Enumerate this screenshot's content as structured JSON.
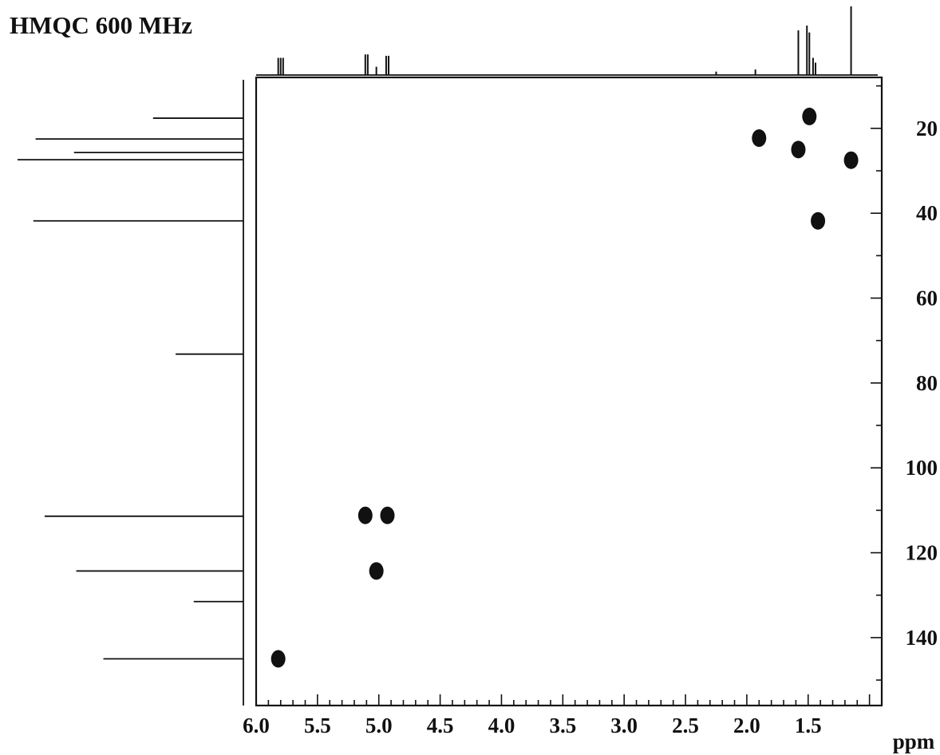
{
  "title": "HMQC 600 MHz",
  "chart_data": {
    "type": "scatter",
    "title": "HMQC 600 MHz",
    "x_axis": {
      "label": "ppm",
      "range": [
        6.0,
        0.9
      ],
      "reversed": true,
      "ticks": [
        6.0,
        5.5,
        5.0,
        4.5,
        4.0,
        3.5,
        3.0,
        2.5,
        2.0,
        1.5
      ],
      "tick_labels": [
        "6.0",
        "5.5",
        "5.0",
        "4.5",
        "4.0",
        "3.5",
        "3.0",
        "2.5",
        "2.0",
        "1.5"
      ],
      "minor_step": 0.1
    },
    "y_axis": {
      "label": "",
      "range": [
        8,
        156
      ],
      "reversed": true,
      "position": "right",
      "ticks": [
        20,
        40,
        60,
        80,
        100,
        120,
        140
      ],
      "tick_labels": [
        "20",
        "40",
        "60",
        "80",
        "100",
        "120",
        "140"
      ],
      "minor_step": 10
    },
    "cross_peaks": [
      {
        "h": 5.82,
        "c": 145.0
      },
      {
        "h": 5.11,
        "c": 111.2
      },
      {
        "h": 4.93,
        "c": 111.2
      },
      {
        "h": 5.02,
        "c": 124.3
      },
      {
        "h": 1.9,
        "c": 22.3
      },
      {
        "h": 1.58,
        "c": 25.0
      },
      {
        "h": 1.49,
        "c": 17.2
      },
      {
        "h": 1.42,
        "c": 41.8
      },
      {
        "h": 1.15,
        "c": 27.5
      }
    ],
    "proton_spectrum_peaks": [
      {
        "h": 5.82,
        "height": 0.25
      },
      {
        "h": 5.8,
        "height": 0.25
      },
      {
        "h": 5.78,
        "height": 0.25
      },
      {
        "h": 5.11,
        "height": 0.3
      },
      {
        "h": 5.09,
        "height": 0.3
      },
      {
        "h": 5.02,
        "height": 0.12
      },
      {
        "h": 4.94,
        "height": 0.28
      },
      {
        "h": 4.92,
        "height": 0.28
      },
      {
        "h": 2.25,
        "height": 0.05
      },
      {
        "h": 1.93,
        "height": 0.08
      },
      {
        "h": 1.58,
        "height": 0.65
      },
      {
        "h": 1.51,
        "height": 0.72
      },
      {
        "h": 1.49,
        "height": 0.62
      },
      {
        "h": 1.46,
        "height": 0.25
      },
      {
        "h": 1.44,
        "height": 0.18
      },
      {
        "h": 1.15,
        "height": 1.0
      }
    ],
    "carbon_spectrum_peaks": [
      {
        "c": 17.6,
        "height": 0.4
      },
      {
        "c": 22.5,
        "height": 0.92
      },
      {
        "c": 25.7,
        "height": 0.75
      },
      {
        "c": 27.4,
        "height": 1.0
      },
      {
        "c": 41.8,
        "height": 0.93
      },
      {
        "c": 73.2,
        "height": 0.3
      },
      {
        "c": 111.4,
        "height": 0.88
      },
      {
        "c": 124.3,
        "height": 0.74
      },
      {
        "c": 131.5,
        "height": 0.22
      },
      {
        "c": 145.0,
        "height": 0.62
      }
    ]
  }
}
